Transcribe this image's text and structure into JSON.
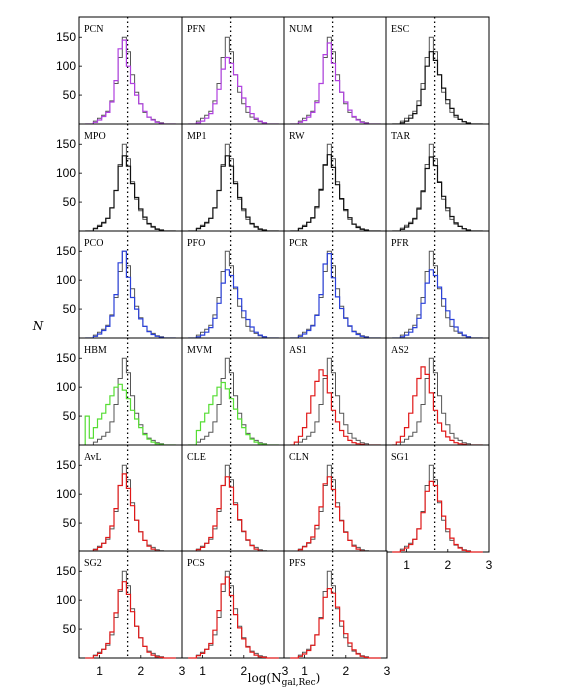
{
  "figure": {
    "ylabel": "N",
    "xlabel": "log(N",
    "xlabel_sub": "gal,Rec",
    "xlabel_close": ")"
  },
  "colors": {
    "reference": "#555555",
    "purple": "#b040e0",
    "black": "#111111",
    "blue": "#2a40d8",
    "green": "#55dd33",
    "red": "#e01818"
  },
  "chart_data": {
    "type": "bar",
    "chart_kind": "grid of step histograms (6 rows x 4 columns, 23 panels)",
    "x_axis": {
      "ticks": [
        1,
        2,
        3
      ],
      "xlim": [
        0.5,
        3.0
      ]
    },
    "y_axis": {
      "ticks": [
        50,
        100,
        150
      ],
      "ylim": [
        0,
        185
      ]
    },
    "reference_line": {
      "x": 1.68,
      "style": "dotted"
    },
    "bin_edges": [
      0.65,
      0.75,
      0.85,
      0.95,
      1.05,
      1.15,
      1.25,
      1.35,
      1.45,
      1.55,
      1.65,
      1.75,
      1.85,
      1.95,
      2.05,
      2.15,
      2.25,
      2.35,
      2.45,
      2.55,
      2.65,
      2.75,
      2.85
    ],
    "reference_series": {
      "name": "",
      "color": "#555555",
      "values": [
        0,
        0,
        5,
        10,
        15,
        22,
        40,
        70,
        115,
        150,
        125,
        85,
        55,
        35,
        20,
        12,
        8,
        4,
        2,
        0,
        0,
        0
      ]
    },
    "panels": [
      {
        "label": "PCN",
        "color": "purple",
        "values": [
          0,
          0,
          3,
          7,
          13,
          20,
          38,
          75,
          130,
          145,
          100,
          70,
          50,
          35,
          22,
          12,
          7,
          3,
          1,
          0,
          0,
          0
        ]
      },
      {
        "label": "PFN",
        "color": "purple",
        "values": [
          0,
          0,
          2,
          5,
          10,
          18,
          35,
          60,
          95,
          115,
          105,
          85,
          65,
          45,
          30,
          18,
          10,
          5,
          2,
          0,
          0,
          0
        ]
      },
      {
        "label": "NUM",
        "color": "purple",
        "values": [
          0,
          0,
          3,
          6,
          12,
          20,
          37,
          70,
          120,
          140,
          105,
          75,
          55,
          38,
          24,
          13,
          7,
          3,
          1,
          0,
          0,
          0
        ]
      },
      {
        "label": "ESC",
        "color": "black",
        "values": [
          0,
          0,
          2,
          5,
          10,
          18,
          32,
          60,
          100,
          125,
          110,
          85,
          62,
          42,
          27,
          15,
          8,
          4,
          1,
          0,
          0,
          0
        ]
      },
      {
        "label": "MPO",
        "color": "black",
        "values": [
          0,
          0,
          4,
          8,
          14,
          22,
          40,
          70,
          112,
          130,
          112,
          82,
          58,
          38,
          24,
          13,
          7,
          3,
          1,
          0,
          0,
          0
        ]
      },
      {
        "label": "MP1",
        "color": "black",
        "values": [
          0,
          0,
          4,
          8,
          14,
          22,
          40,
          70,
          112,
          130,
          112,
          82,
          58,
          38,
          24,
          13,
          7,
          3,
          1,
          0,
          0,
          0
        ]
      },
      {
        "label": "RW",
        "color": "black",
        "values": [
          0,
          0,
          4,
          8,
          15,
          23,
          42,
          72,
          114,
          132,
          110,
          80,
          56,
          37,
          23,
          12,
          6,
          3,
          1,
          0,
          0,
          0
        ]
      },
      {
        "label": "TAR",
        "color": "black",
        "values": [
          0,
          0,
          3,
          7,
          13,
          21,
          38,
          68,
          108,
          128,
          113,
          84,
          60,
          40,
          25,
          14,
          8,
          4,
          1,
          0,
          0,
          0
        ]
      },
      {
        "label": "PCO",
        "color": "blue",
        "values": [
          0,
          0,
          3,
          7,
          13,
          20,
          38,
          75,
          130,
          150,
          105,
          70,
          50,
          33,
          20,
          11,
          6,
          3,
          1,
          0,
          0,
          0
        ]
      },
      {
        "label": "PFO",
        "color": "blue",
        "values": [
          0,
          0,
          2,
          5,
          10,
          18,
          34,
          60,
          95,
          118,
          108,
          88,
          68,
          47,
          32,
          19,
          10,
          5,
          2,
          0,
          0,
          0
        ]
      },
      {
        "label": "PCR",
        "color": "blue",
        "values": [
          0,
          0,
          3,
          7,
          13,
          21,
          39,
          75,
          128,
          146,
          104,
          71,
          51,
          34,
          21,
          11,
          6,
          3,
          1,
          0,
          0,
          0
        ]
      },
      {
        "label": "PFR",
        "color": "blue",
        "values": [
          0,
          0,
          2,
          5,
          10,
          18,
          34,
          60,
          95,
          118,
          108,
          88,
          68,
          47,
          32,
          19,
          10,
          5,
          2,
          0,
          0,
          0
        ]
      },
      {
        "label": "HBM",
        "color": "green",
        "values": [
          50,
          12,
          30,
          45,
          55,
          70,
          85,
          100,
          105,
          95,
          80,
          60,
          45,
          30,
          18,
          10,
          5,
          2,
          1,
          0,
          0,
          0
        ]
      },
      {
        "label": "MVM",
        "color": "green",
        "values": [
          0,
          0,
          25,
          40,
          55,
          70,
          85,
          100,
          108,
          97,
          80,
          62,
          45,
          30,
          18,
          10,
          5,
          2,
          1,
          0,
          0,
          0
        ]
      },
      {
        "label": "AS1",
        "color": "red",
        "values": [
          0,
          5,
          15,
          30,
          55,
          85,
          110,
          130,
          120,
          90,
          60,
          40,
          25,
          15,
          8,
          4,
          2,
          1,
          0,
          0,
          0,
          0
        ]
      },
      {
        "label": "AS2",
        "color": "red",
        "values": [
          0,
          5,
          15,
          30,
          55,
          85,
          115,
          135,
          122,
          90,
          60,
          38,
          24,
          14,
          8,
          4,
          2,
          1,
          0,
          0,
          0,
          0
        ]
      },
      {
        "label": "AvL",
        "color": "red",
        "values": [
          0,
          0,
          4,
          8,
          15,
          25,
          45,
          75,
          115,
          135,
          110,
          80,
          55,
          35,
          20,
          10,
          5,
          2,
          1,
          0,
          0,
          0
        ]
      },
      {
        "label": "CLE",
        "color": "red",
        "values": [
          0,
          0,
          4,
          8,
          15,
          25,
          45,
          75,
          115,
          130,
          112,
          82,
          56,
          36,
          21,
          11,
          5,
          2,
          1,
          0,
          0,
          0
        ]
      },
      {
        "label": "CLN",
        "color": "red",
        "values": [
          0,
          0,
          4,
          9,
          16,
          26,
          46,
          78,
          118,
          130,
          108,
          78,
          54,
          34,
          20,
          10,
          5,
          2,
          1,
          0,
          0,
          0
        ]
      },
      {
        "label": "SG1",
        "color": "red",
        "values": [
          0,
          0,
          3,
          7,
          13,
          22,
          40,
          68,
          105,
          122,
          115,
          88,
          62,
          40,
          24,
          13,
          7,
          3,
          1,
          0,
          0,
          0
        ]
      },
      {
        "label": "SG2",
        "color": "red",
        "values": [
          0,
          0,
          4,
          8,
          15,
          25,
          45,
          78,
          118,
          132,
          110,
          80,
          55,
          35,
          20,
          10,
          5,
          2,
          1,
          0,
          0,
          0
        ]
      },
      {
        "label": "PCS",
        "color": "red",
        "values": [
          0,
          0,
          4,
          8,
          15,
          25,
          48,
          82,
          128,
          140,
          108,
          75,
          52,
          33,
          19,
          10,
          5,
          2,
          1,
          0,
          0,
          0
        ]
      },
      {
        "label": "PFS",
        "color": "red",
        "values": [
          0,
          0,
          3,
          7,
          13,
          22,
          40,
          68,
          105,
          120,
          112,
          88,
          64,
          42,
          26,
          14,
          7,
          3,
          1,
          0,
          0,
          0
        ]
      }
    ]
  }
}
